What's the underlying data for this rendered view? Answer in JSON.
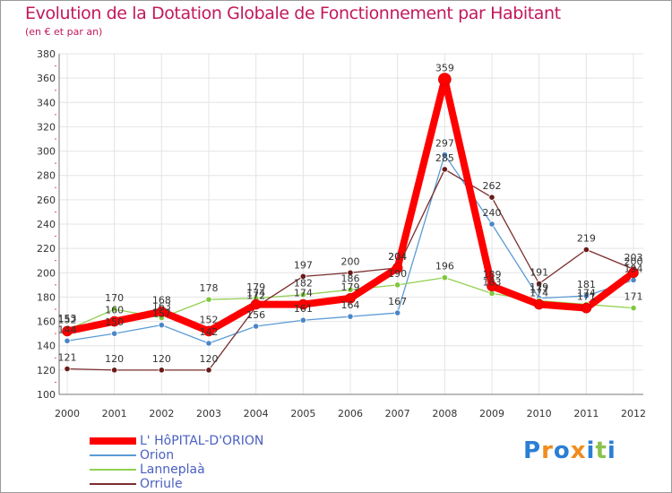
{
  "chart_data": {
    "type": "line",
    "title": "Evolution de la Dotation Globale de Fonctionnement par Habitant",
    "subtitle": "(en € et par an)",
    "xlabel": "",
    "ylabel": "",
    "ylim": [
      100,
      380
    ],
    "ytick_step": 20,
    "yticks": [
      "100",
      "120",
      "140",
      "160",
      "180",
      "200",
      "220",
      "240",
      "260",
      "280",
      "300",
      "320",
      "340",
      "360",
      "380"
    ],
    "categories": [
      "2000",
      "2001",
      "2002",
      "2003",
      "2004",
      "2005",
      "2006",
      "2007",
      "2008",
      "2009",
      "2010",
      "2011",
      "2012"
    ],
    "legend_position": "bottom-left",
    "series": [
      {
        "name": "L' HôPITAL-D'ORION",
        "color": "#ff0000",
        "marker": "#ff0000",
        "width": 8,
        "values": [
          152,
          160,
          168,
          152,
          174,
          174,
          179,
          204,
          359,
          189,
          174,
          171,
          200
        ]
      },
      {
        "name": "Orion",
        "color": "#5b9bd5",
        "marker": "#4a86c8",
        "width": 1.3,
        "values": [
          144,
          150,
          157,
          142,
          156,
          161,
          164,
          167,
          297,
          240,
          179,
          181,
          194
        ]
      },
      {
        "name": "Lanneplaà",
        "color": "#92d050",
        "marker": "#7ec83c",
        "width": 1.3,
        "values": [
          153,
          170,
          163,
          178,
          179,
          182,
          186,
          190,
          196,
          183,
          177,
          174,
          171
        ]
      },
      {
        "name": "Orriule",
        "color": "#7b2d2d",
        "marker": "#6b1a1a",
        "width": 1.3,
        "values": [
          121,
          120,
          120,
          120,
          172,
          197,
          200,
          204,
          285,
          262,
          191,
          219,
          203
        ]
      }
    ],
    "point_labels": [
      {
        "series": 0,
        "values": [
          "152",
          "160",
          "168",
          "152",
          "174",
          "174",
          "179",
          "204",
          "359",
          "189",
          "174",
          "171",
          "200"
        ]
      },
      {
        "series": 1,
        "values": [
          "144",
          "150",
          "157",
          "142",
          "156",
          "161",
          "164",
          "167",
          "297",
          "240",
          "179",
          "181",
          "194"
        ]
      },
      {
        "series": 2,
        "values": [
          "153",
          "170",
          "163",
          "178",
          "179",
          "182",
          "186",
          "190",
          "196",
          "183",
          "177",
          "174",
          "171"
        ]
      },
      {
        "series": 3,
        "values": [
          "121",
          "120",
          "120",
          "120",
          "172",
          "197",
          "200",
          "204",
          "285",
          "262",
          "191",
          "219",
          "203"
        ]
      }
    ]
  },
  "legend": {
    "items": [
      {
        "label": "L' HôPITAL-D'ORION",
        "color": "#ff0000"
      },
      {
        "label": "Orion",
        "color": "#5b9bd5"
      },
      {
        "label": "Lanneplaà",
        "color": "#92d050"
      },
      {
        "label": "Orriule",
        "color": "#7b2d2d"
      }
    ]
  },
  "logo": {
    "letters": [
      {
        "ch": "P",
        "color": "#2a7fd4"
      },
      {
        "ch": "r",
        "color": "#f08c1e"
      },
      {
        "ch": "o",
        "color": "#2a7fd4"
      },
      {
        "ch": "x",
        "color": "#f08c1e"
      },
      {
        "ch": "i",
        "color": "#2a7fd4"
      },
      {
        "ch": "t",
        "color": "#8bc34a"
      },
      {
        "ch": "i",
        "color": "#2a7fd4"
      }
    ]
  }
}
